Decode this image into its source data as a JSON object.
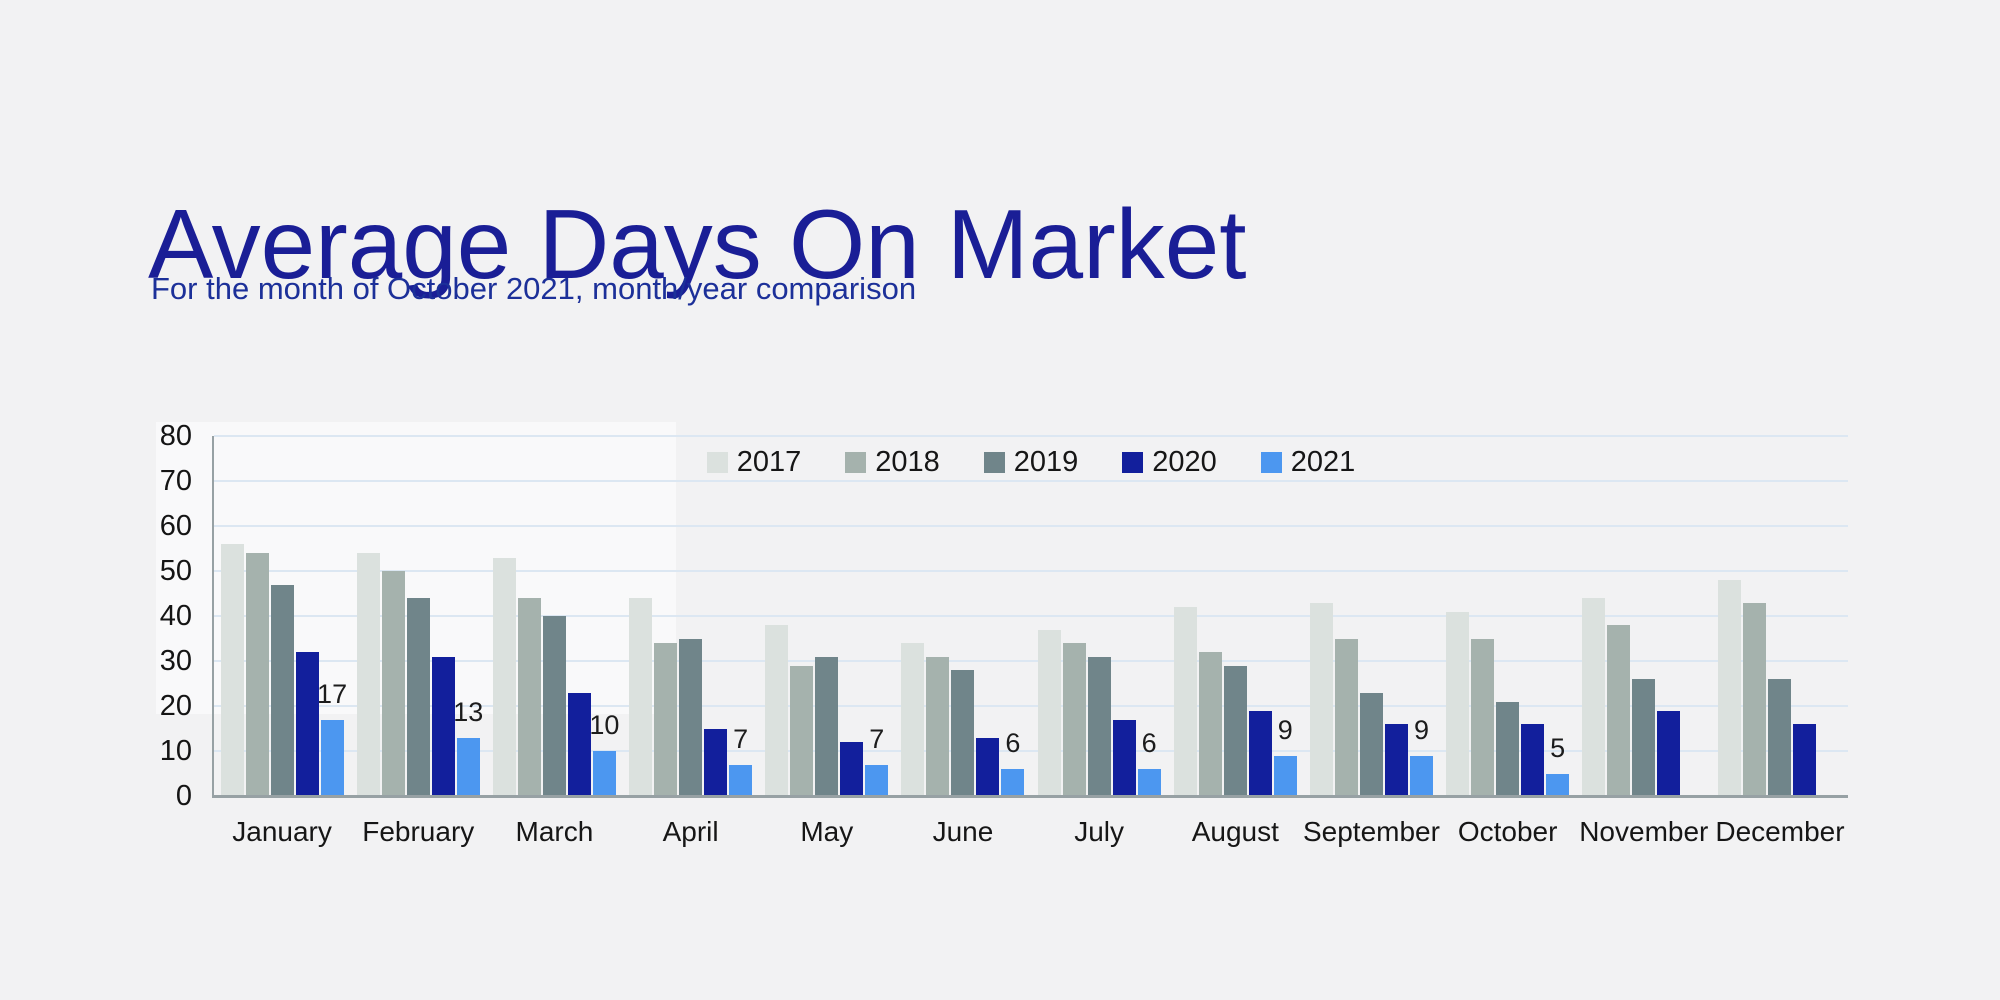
{
  "page": {
    "background_color": "#f2f2f3",
    "title_color": "#1a1e96",
    "subtitle_color": "#1c3099",
    "gridline_color": "#dce7f2",
    "axis_color": "#97a1a4",
    "text_color": "#161616"
  },
  "header": {
    "title": "Average Days On Market",
    "subtitle": "For the month of October 2021, month/year comparison"
  },
  "chart_data": {
    "type": "bar",
    "title": "Average Days On Market",
    "xlabel": "",
    "ylabel": "",
    "ylim": [
      0,
      80
    ],
    "yticks": [
      0,
      10,
      20,
      30,
      40,
      50,
      60,
      70,
      80
    ],
    "grid": "horizontal",
    "legend_position": "top-center",
    "data_labels_series": "2021",
    "categories": [
      "January",
      "February",
      "March",
      "April",
      "May",
      "June",
      "July",
      "August",
      "September",
      "October",
      "November",
      "December"
    ],
    "series": [
      {
        "name": "2017",
        "color": "#dbe1de",
        "values": [
          56,
          54,
          53,
          44,
          38,
          34,
          37,
          42,
          43,
          41,
          44,
          48
        ]
      },
      {
        "name": "2018",
        "color": "#a5b2ad",
        "values": [
          54,
          50,
          44,
          34,
          29,
          31,
          34,
          32,
          35,
          35,
          38,
          43
        ]
      },
      {
        "name": "2019",
        "color": "#70858a",
        "values": [
          47,
          44,
          40,
          35,
          31,
          28,
          31,
          29,
          23,
          21,
          26,
          26
        ]
      },
      {
        "name": "2020",
        "color": "#121f9c",
        "values": [
          32,
          31,
          23,
          15,
          12,
          13,
          17,
          19,
          16,
          16,
          19,
          16
        ]
      },
      {
        "name": "2021",
        "color": "#4c97f0",
        "values": [
          17,
          13,
          10,
          7,
          7,
          6,
          6,
          9,
          9,
          5,
          null,
          null
        ]
      }
    ]
  }
}
